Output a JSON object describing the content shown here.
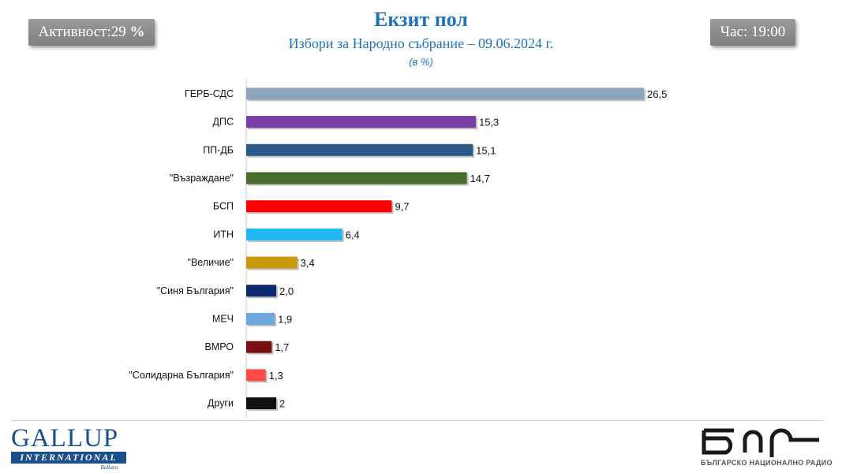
{
  "header": {
    "title": "Екзит пол",
    "subtitle": "Избори за Народно събрание – 09.06.2024  г.",
    "unit": "(в %)",
    "turnout_label": "Активност:29 ",
    "turnout_pct": "%",
    "time": "Час: 19:00"
  },
  "logos": {
    "gallup_main": "GALLUP",
    "gallup_sub": "INTERNATIONAL",
    "gallup_region": "Balkans",
    "bnr_text": "БЪЛГАРСКО НАЦИОНАЛНО РАДИО"
  },
  "colors": {
    "title": "#1f73bd",
    "badge": "#8c8c8c"
  },
  "chart_data": {
    "type": "bar",
    "orientation": "horizontal",
    "categories": [
      "ГЕРБ-СДС",
      "ДПС",
      "ПП-ДБ",
      "\"Възраждане\"",
      "БСП",
      "ИТН",
      "\"Величие\"",
      "\"Синя България\"",
      "МЕЧ",
      "ВМРО",
      "\"Солидарна България\"",
      "Други"
    ],
    "values": [
      26.5,
      15.3,
      15.1,
      14.7,
      9.7,
      6.4,
      3.4,
      2.0,
      1.9,
      1.7,
      1.3,
      2
    ],
    "value_labels": [
      "26,5",
      "15,3",
      "15,1",
      "14,7",
      "9,7",
      "6,4",
      "3,4",
      "2,0",
      "1,9",
      "1,7",
      "1,3",
      "2"
    ],
    "colors": [
      "#8ea3bd",
      "#7b3fa8",
      "#2b5a8a",
      "#4a6b2c",
      "#ff0000",
      "#1fb8f5",
      "#c99a06",
      "#0d2a6e",
      "#6ea6de",
      "#7a0f0f",
      "#ff4a4a",
      "#111111"
    ],
    "xlim": [
      0,
      26.5
    ],
    "grid": false,
    "legend": "none"
  }
}
